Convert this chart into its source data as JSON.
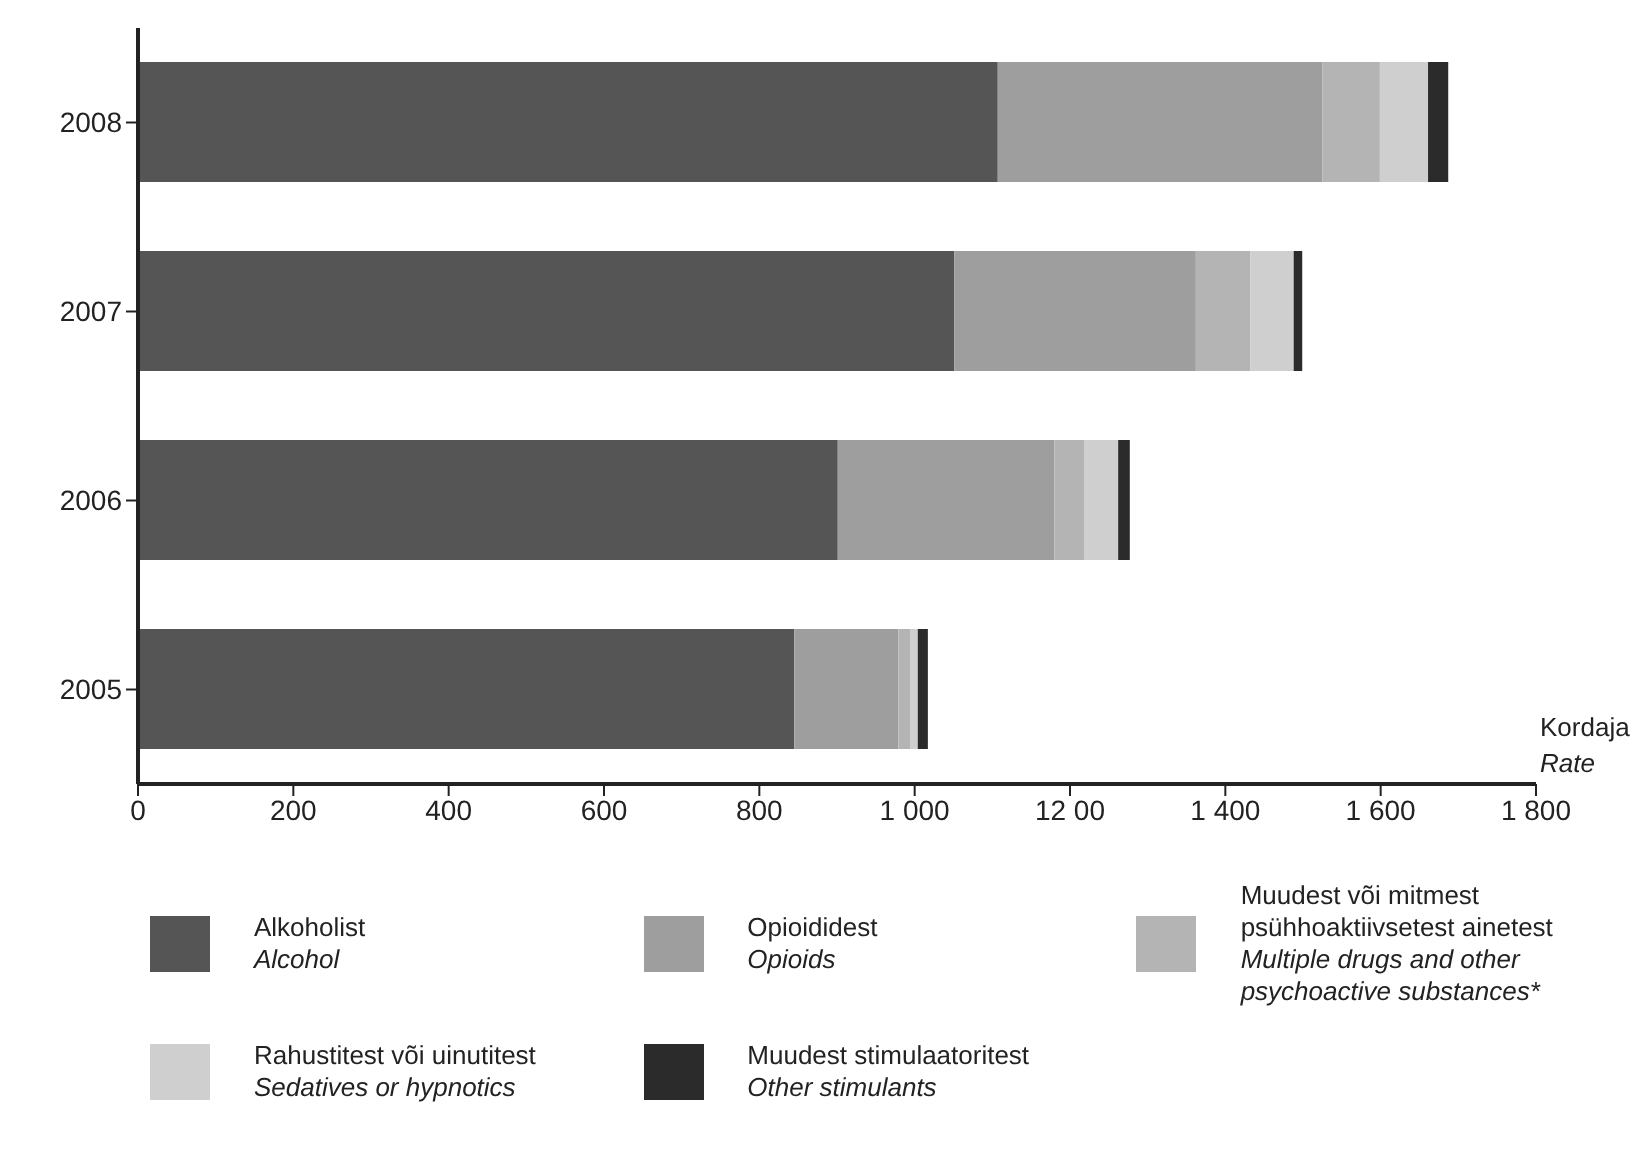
{
  "chart_data": {
    "type": "bar",
    "orientation": "horizontal",
    "stacked": true,
    "xlabel": "Kordaja\nRate",
    "categories": [
      "2008",
      "2007",
      "2006",
      "2005"
    ],
    "series": [
      {
        "name": "Alkoholist\nAlcohol",
        "color": "#555555",
        "values": [
          1107,
          1051,
          901,
          845
        ]
      },
      {
        "name": "Opioididest\nOpioids",
        "color": "#9e9e9e",
        "values": [
          418,
          311,
          279,
          134
        ]
      },
      {
        "name": "Muudest või mitmest psühhoaktiivsetest ainetest\nMultiple drugs and other psychoactive substances*",
        "color": "#b4b4b4",
        "values": [
          74,
          70,
          38,
          15
        ]
      },
      {
        "name": "Rahustitest või uinutitest\nSedatives or hypnotics",
        "color": "#cfcfcf",
        "values": [
          62,
          56,
          44,
          10
        ]
      },
      {
        "name": "Muudest stimulaatoritest\nOther stimulants",
        "color": "#2b2b2b",
        "values": [
          26,
          11,
          15,
          13
        ]
      }
    ],
    "xlim": [
      0,
      1800
    ],
    "xticks": [
      0,
      200,
      400,
      600,
      800,
      {
        "value": 1000,
        "label": "1 000"
      },
      {
        "value": 1200,
        "label": "12 00"
      },
      {
        "value": 1400,
        "label": "1 400"
      },
      {
        "value": 1600,
        "label": "1 600"
      },
      {
        "value": 1800,
        "label": "1 800"
      }
    ],
    "legend": "bottom"
  }
}
